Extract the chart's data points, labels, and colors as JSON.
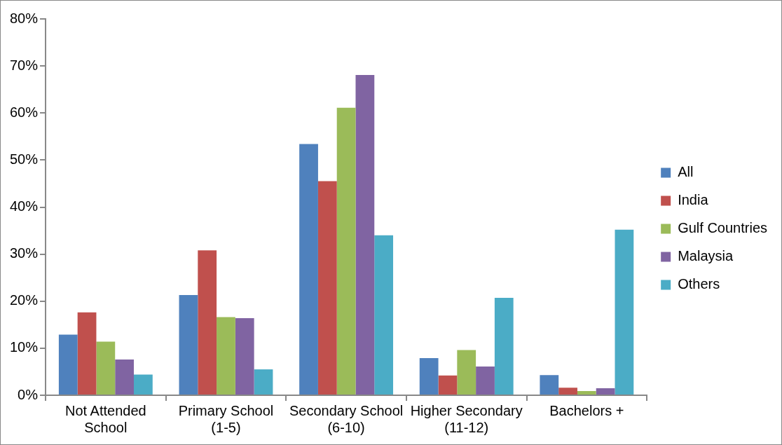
{
  "chart_data": {
    "type": "bar",
    "categories": [
      "Not Attended School",
      "Primary School (1-5)",
      "Secondary School (6-10)",
      "Higher Secondary (11-12)",
      "Bachelors +"
    ],
    "series": [
      {
        "name": "All",
        "color": "#4f81bd",
        "values": [
          12.9,
          21.3,
          53.4,
          7.9,
          4.3
        ]
      },
      {
        "name": "India",
        "color": "#c0504d",
        "values": [
          17.6,
          30.8,
          45.5,
          4.2,
          1.6
        ]
      },
      {
        "name": "Gulf Countries",
        "color": "#9bbb59",
        "values": [
          11.4,
          16.6,
          61.1,
          9.6,
          0.9
        ]
      },
      {
        "name": "Malaysia",
        "color": "#8064a2",
        "values": [
          7.6,
          16.4,
          68.1,
          6.1,
          1.5
        ]
      },
      {
        "name": "Others",
        "color": "#4bacc6",
        "values": [
          4.4,
          5.5,
          34.0,
          20.7,
          35.2
        ]
      }
    ],
    "ylim": [
      0,
      80
    ],
    "yticks": [
      {
        "value": 0,
        "label": "0%"
      },
      {
        "value": 10,
        "label": "10%"
      },
      {
        "value": 20,
        "label": "20%"
      },
      {
        "value": 30,
        "label": "30%"
      },
      {
        "value": 40,
        "label": "40%"
      },
      {
        "value": 50,
        "label": "50%"
      },
      {
        "value": 60,
        "label": "60%"
      },
      {
        "value": 70,
        "label": "70%"
      },
      {
        "value": 80,
        "label": "80%"
      }
    ],
    "grid": false,
    "legend": "right"
  }
}
